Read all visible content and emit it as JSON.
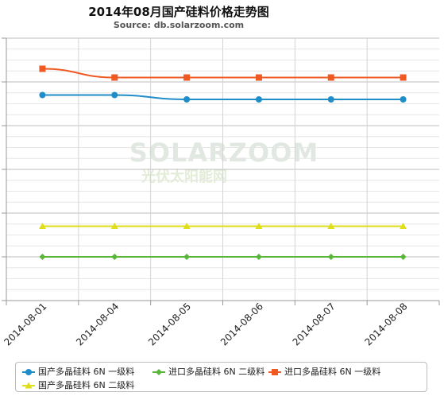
{
  "title": "2014年08月国产硅料价格走势图",
  "subtitle": "Source: db.solarzoom.com",
  "watermark": {
    "main": "SOLARZOOM",
    "sub": "光伏太阳能网"
  },
  "chart_data": {
    "type": "line",
    "categories": [
      "2014-08-01",
      "2014-08-04",
      "2014-08-05",
      "2014-08-06",
      "2014-08-07",
      "2014-08-08"
    ],
    "ylim": [
      80,
      200
    ],
    "y_ticks": [
      80,
      100,
      120,
      140,
      160,
      180,
      200
    ],
    "y_tick_labels_visible": false,
    "grid": true,
    "legend_position": "bottom",
    "series": [
      {
        "name": "国产多晶硅料 6N 一级料",
        "color": "#1f8dc8",
        "marker": "circle",
        "values": [
          174,
          174,
          172,
          172,
          172,
          172
        ]
      },
      {
        "name": "进口多晶硅料 6N 二级料",
        "color": "#5ab63a",
        "marker": "diamond",
        "values": [
          100,
          100,
          100,
          100,
          100,
          100
        ]
      },
      {
        "name": "进口多晶硅料 6N 一级料",
        "color": "#ef5a23",
        "marker": "square",
        "values": [
          186,
          182,
          182,
          182,
          182,
          182
        ]
      },
      {
        "name": "国产多晶硅料 6N 二级料",
        "color": "#dede1a",
        "marker": "triangle",
        "values": [
          114,
          114,
          114,
          114,
          114,
          114
        ]
      }
    ]
  }
}
